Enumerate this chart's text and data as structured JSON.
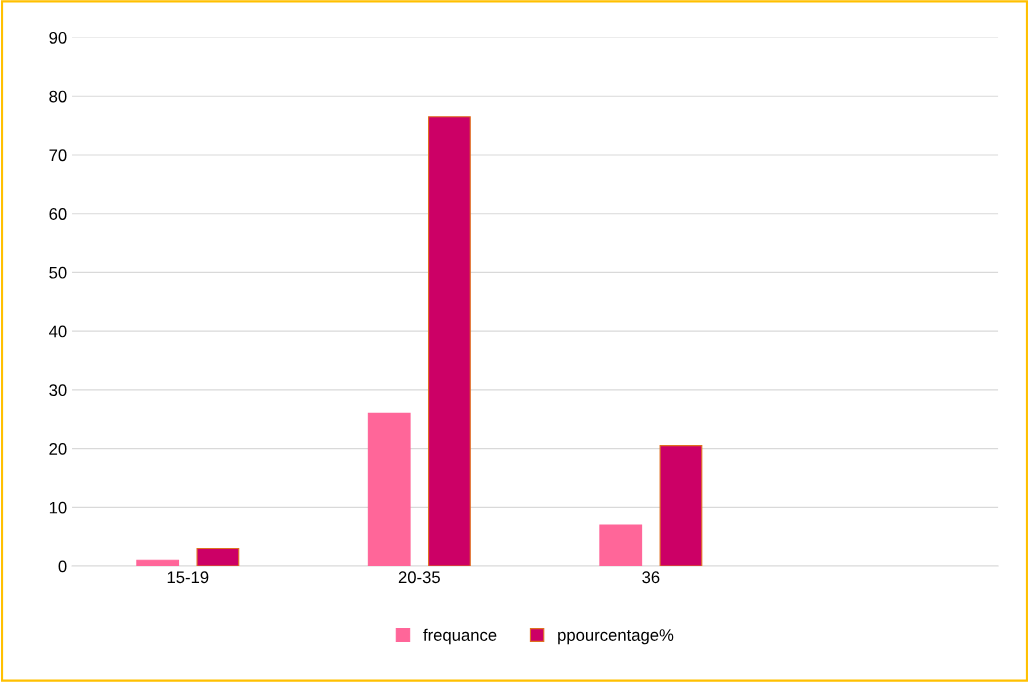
{
  "chart_data": {
    "type": "bar",
    "categories": [
      "15-19",
      "20-35",
      "36",
      null
    ],
    "series": [
      {
        "name": "frequance",
        "color": "#ff6699",
        "values": [
          1,
          26,
          7,
          null
        ]
      },
      {
        "name": "ppourcentage%",
        "color": "#cc0066",
        "values": [
          3,
          76.5,
          20.5,
          null
        ]
      }
    ],
    "ylim": [
      0,
      90
    ],
    "yticks": [
      0,
      10,
      20,
      30,
      40,
      50,
      60,
      70,
      80,
      90
    ],
    "grid": "y",
    "legend": "bottom"
  }
}
